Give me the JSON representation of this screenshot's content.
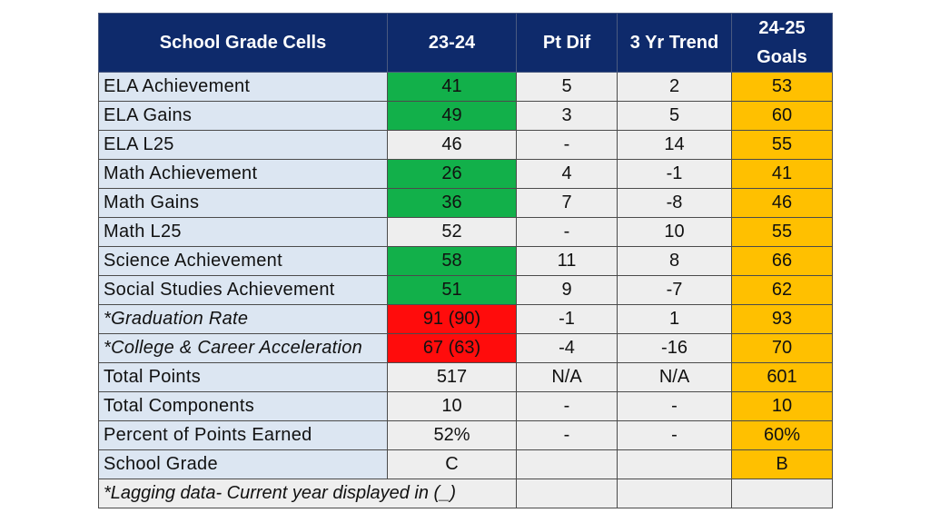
{
  "headers": {
    "cells": "School Grade Cells",
    "year": "23-24",
    "pt_dif": "Pt Dif",
    "trend": "3 Yr Trend",
    "goals_line1": "24-25",
    "goals_line2": "Goals"
  },
  "rows": [
    {
      "label": "ELA Achievement",
      "value": "41",
      "pt_dif": "5",
      "trend": "2",
      "goal": "53"
    },
    {
      "label": "ELA Gains",
      "value": "49",
      "pt_dif": "3",
      "trend": "5",
      "goal": "60"
    },
    {
      "label": "ELA L25",
      "value": "46",
      "pt_dif": "-",
      "trend": "14",
      "goal": "55"
    },
    {
      "label": "Math Achievement",
      "value": "26",
      "pt_dif": "4",
      "trend": "-1",
      "goal": "41"
    },
    {
      "label": "Math Gains",
      "value": "36",
      "pt_dif": "7",
      "trend": "-8",
      "goal": "46"
    },
    {
      "label": "Math L25",
      "value": "52",
      "pt_dif": "-",
      "trend": "10",
      "goal": "55"
    },
    {
      "label": "Science Achievement",
      "value": "58",
      "pt_dif": "11",
      "trend": "8",
      "goal": "66"
    },
    {
      "label": "Social Studies Achievement",
      "value": "51",
      "pt_dif": "9",
      "trend": "-7",
      "goal": "62"
    },
    {
      "label": "*Graduation Rate",
      "value": "91 (90)",
      "pt_dif": "-1",
      "trend": "1",
      "goal": "93"
    },
    {
      "label": "*College & Career Acceleration",
      "value": "67 (63)",
      "pt_dif": "-4",
      "trend": "-16",
      "goal": "70"
    },
    {
      "label": "Total Points",
      "value": "517",
      "pt_dif": "N/A",
      "trend": "N/A",
      "goal": "601"
    },
    {
      "label": "Total Components",
      "value": "10",
      "pt_dif": "-",
      "trend": "-",
      "goal": "10"
    },
    {
      "label": "Percent of Points Earned",
      "value": "52%",
      "pt_dif": "-",
      "trend": "-",
      "goal": "60%"
    },
    {
      "label": "School Grade",
      "value": "C",
      "pt_dif": "",
      "trend": "",
      "goal": "B"
    }
  ],
  "footnote": "*Lagging data- Current year displayed in (_)",
  "colors": {
    "header_bg": "#0e2a6b",
    "label_bg": "#dce6f2",
    "cell_bg": "#eeeeee",
    "green": "#12b04a",
    "red": "#ff0c0c",
    "goal": "#ffc000"
  }
}
